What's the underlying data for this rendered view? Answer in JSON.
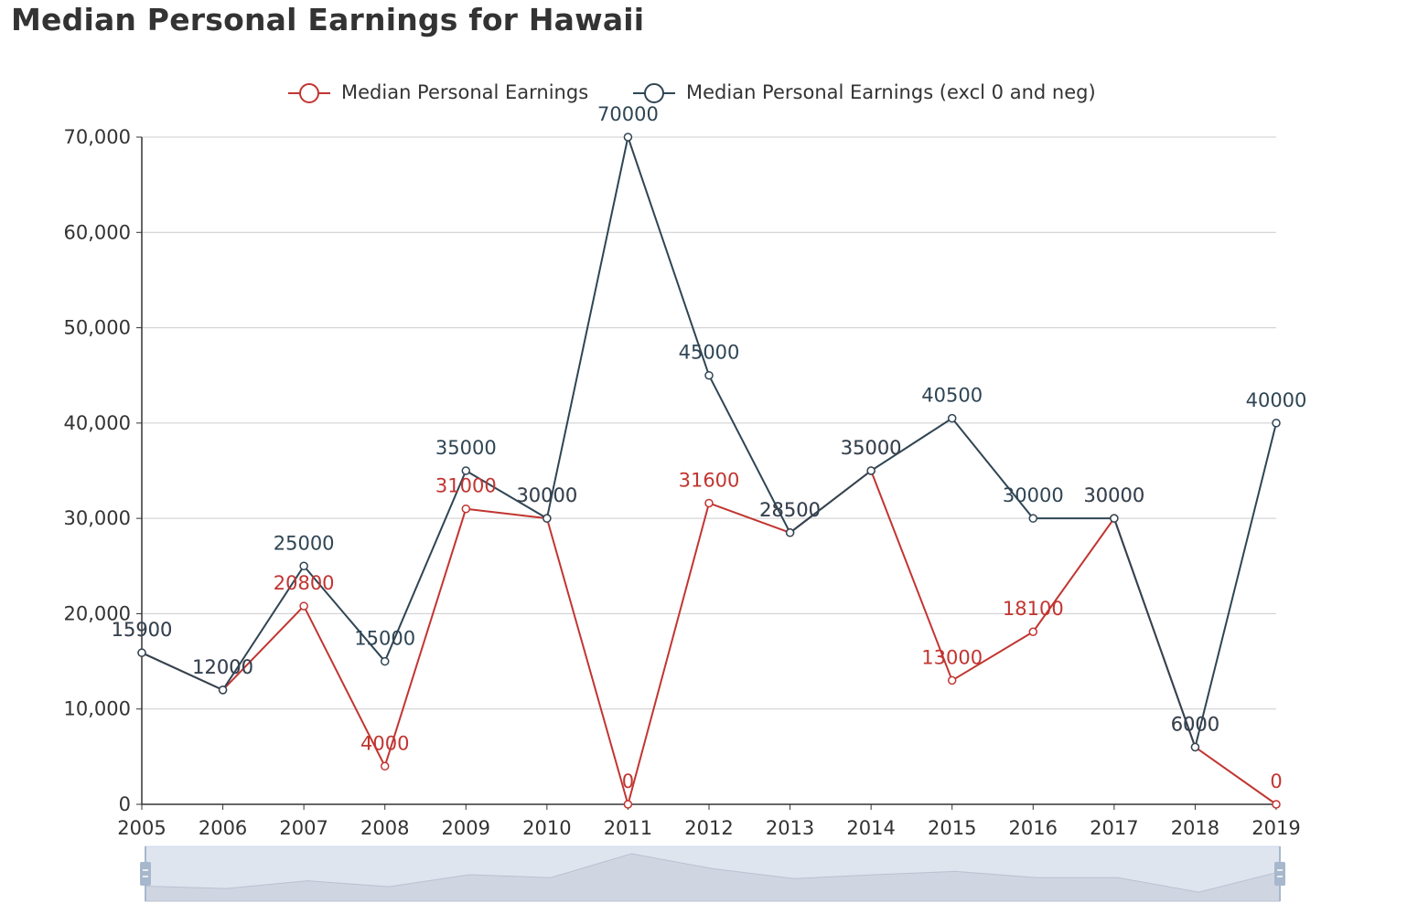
{
  "title": "Median Personal Earnings for Hawaii",
  "chart_data": {
    "type": "line",
    "title": "Median Personal Earnings for Hawaii",
    "xlabel": "",
    "ylabel": "",
    "x": [
      "2005",
      "2006",
      "2007",
      "2008",
      "2009",
      "2010",
      "2011",
      "2012",
      "2013",
      "2014",
      "2015",
      "2016",
      "2017",
      "2018",
      "2019"
    ],
    "ylim": [
      0,
      70000
    ],
    "yticks": [
      0,
      10000,
      20000,
      30000,
      40000,
      50000,
      60000,
      70000
    ],
    "ytick_labels": [
      "0",
      "10,000",
      "20,000",
      "30,000",
      "40,000",
      "50,000",
      "60,000",
      "70,000"
    ],
    "grid": true,
    "legend_position": "top-center",
    "data_zoom": true,
    "series": [
      {
        "name": "Median Personal Earnings",
        "color": "#c23531",
        "values": [
          15900,
          12000,
          20800,
          4000,
          31000,
          30000,
          0,
          31600,
          28500,
          35000,
          13000,
          18100,
          30000,
          6000,
          0
        ]
      },
      {
        "name": "Median Personal Earnings (excl 0 and neg)",
        "color": "#2f4554",
        "values": [
          15900,
          12000,
          25000,
          15000,
          35000,
          30000,
          70000,
          45000,
          28500,
          35000,
          40500,
          30000,
          30000,
          6000,
          40000
        ]
      }
    ]
  }
}
